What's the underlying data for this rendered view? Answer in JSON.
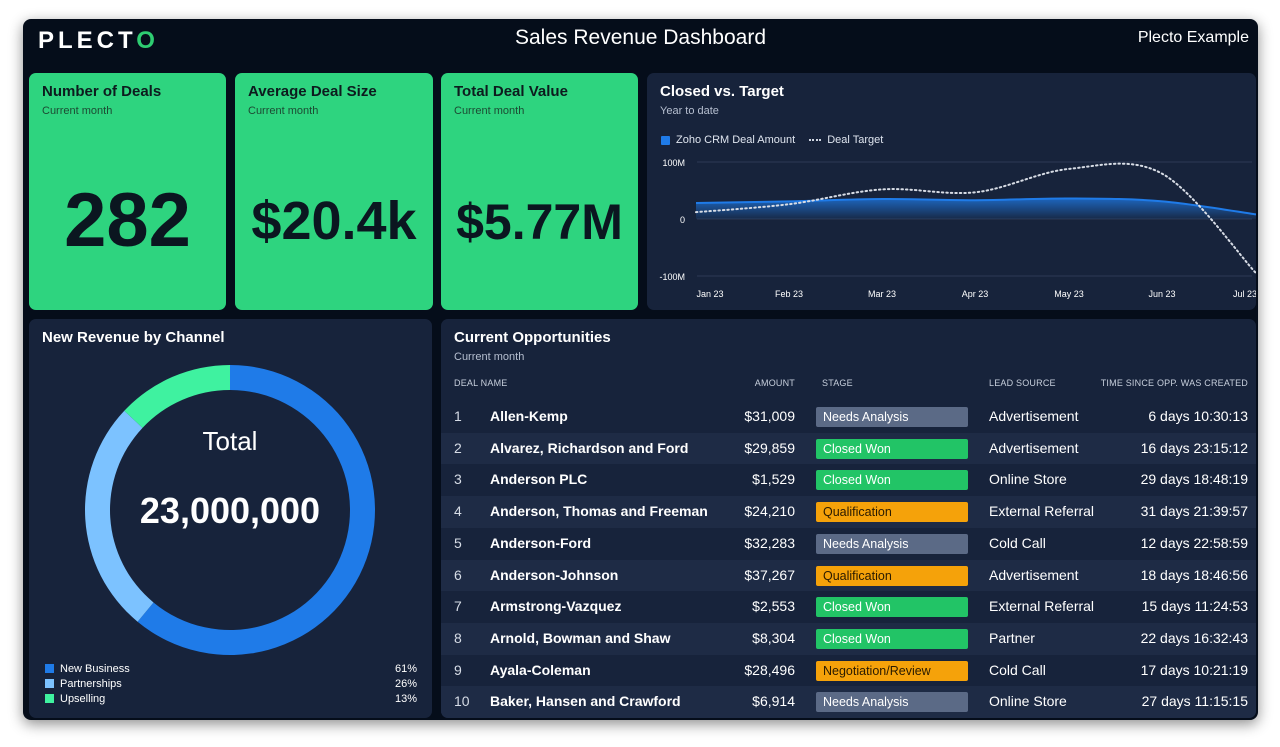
{
  "header": {
    "logo_text": "PLECT",
    "logo_accent": "O",
    "title": "Sales Revenue Dashboard",
    "org": "Plecto Example"
  },
  "kpis": [
    {
      "title": "Number of Deals",
      "subtitle": "Current month",
      "value": "282"
    },
    {
      "title": "Average Deal Size",
      "subtitle": "Current month",
      "value": "$20.4k"
    },
    {
      "title": "Total Deal Value",
      "subtitle": "Current month",
      "value": "$5.77M"
    }
  ],
  "closed_vs_target": {
    "title": "Closed vs. Target",
    "subtitle": "Year to date",
    "legend": [
      "Zoho CRM Deal Amount",
      "Deal Target"
    ]
  },
  "revenue_by_channel": {
    "title": "New Revenue by Channel",
    "center_label": "Total",
    "center_value": "23,000,000"
  },
  "opportunities": {
    "title": "Current Opportunities",
    "subtitle": "Current month",
    "headers": [
      "DEAL NAME",
      "AMOUNT",
      "STAGE",
      "LEAD SOURCE",
      "TIME SINCE OPP. WAS CREATED"
    ],
    "rows": [
      {
        "idx": "1",
        "name": "Allen-Kemp",
        "amount": "$31,009",
        "stage": "Needs Analysis",
        "lead": "Advertisement",
        "time": "6 days 10:30:13"
      },
      {
        "idx": "2",
        "name": "Alvarez, Richardson and Ford",
        "amount": "$29,859",
        "stage": "Closed Won",
        "lead": "Advertisement",
        "time": "16 days 23:15:12"
      },
      {
        "idx": "3",
        "name": "Anderson PLC",
        "amount": "$1,529",
        "stage": "Closed Won",
        "lead": "Online Store",
        "time": "29 days 18:48:19"
      },
      {
        "idx": "4",
        "name": "Anderson, Thomas and Freeman",
        "amount": "$24,210",
        "stage": "Qualification",
        "lead": "External Referral",
        "time": "31 days 21:39:57"
      },
      {
        "idx": "5",
        "name": "Anderson-Ford",
        "amount": "$32,283",
        "stage": "Needs Analysis",
        "lead": "Cold Call",
        "time": "12 days 22:58:59"
      },
      {
        "idx": "6",
        "name": "Anderson-Johnson",
        "amount": "$37,267",
        "stage": "Qualification",
        "lead": "Advertisement",
        "time": "18 days 18:46:56"
      },
      {
        "idx": "7",
        "name": "Armstrong-Vazquez",
        "amount": "$2,553",
        "stage": "Closed Won",
        "lead": "External Referral",
        "time": "15 days 11:24:53"
      },
      {
        "idx": "8",
        "name": "Arnold, Bowman and Shaw",
        "amount": "$8,304",
        "stage": "Closed Won",
        "lead": "Partner",
        "time": "22 days 16:32:43"
      },
      {
        "idx": "9",
        "name": "Ayala-Coleman",
        "amount": "$28,496",
        "stage": "Negotiation/Review",
        "lead": "Cold Call",
        "time": "17 days 10:21:19"
      },
      {
        "idx": "10",
        "name": "Baker, Hansen and Crawford",
        "amount": "$6,914",
        "stage": "Needs Analysis",
        "lead": "Online Store",
        "time": "27 days 11:15:15"
      }
    ]
  },
  "stage_colors": {
    "Needs Analysis": "#5b6a86",
    "Closed Won": "#22c466",
    "Qualification": "#f5a20a",
    "Negotiation/Review": "#f5a20a"
  },
  "chart_data": [
    {
      "type": "line",
      "title": "Closed vs. Target",
      "subtitle": "Year to date",
      "x": [
        "Jan 23",
        "Feb 23",
        "Mar 23",
        "Apr 23",
        "May 23",
        "Jun 23",
        "Jul 23"
      ],
      "ylim": [
        -100000000,
        100000000
      ],
      "yticks": [
        "100M",
        "0",
        "-100M"
      ],
      "grid": true,
      "legend_position": "top-left",
      "series": [
        {
          "name": "Zoho CRM Deal Amount",
          "style": "area",
          "color": "#1f7be8",
          "values": [
            28000000,
            31000000,
            35000000,
            33000000,
            36000000,
            31000000,
            8000000
          ]
        },
        {
          "name": "Deal Target",
          "style": "dotted",
          "color": "#d7dce5",
          "values": [
            12000000,
            26000000,
            52000000,
            47000000,
            88000000,
            79000000,
            -95000000
          ]
        }
      ]
    },
    {
      "type": "pie",
      "title": "New Revenue by Channel",
      "center_label": "Total",
      "center_value": "23,000,000",
      "legend_position": "bottom",
      "series": [
        {
          "name": "New Business",
          "value": 61,
          "label": "61%",
          "color": "#1f7be8"
        },
        {
          "name": "Partnerships",
          "value": 26,
          "label": "26%",
          "color": "#7cc2ff"
        },
        {
          "name": "Upselling",
          "value": 13,
          "label": "13%",
          "color": "#3ff2a0"
        }
      ]
    }
  ]
}
